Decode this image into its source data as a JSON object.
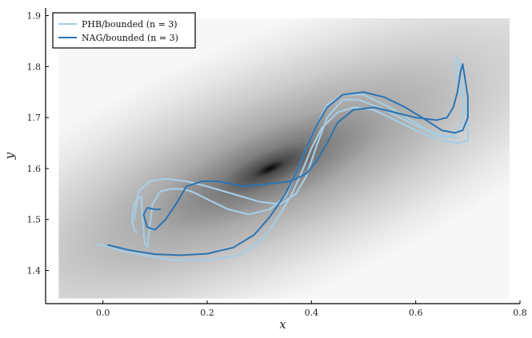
{
  "chart_data": {
    "type": "line",
    "xlabel": "x",
    "ylabel": "y",
    "xlim": [
      -0.11,
      0.8
    ],
    "ylim": [
      1.335,
      1.915
    ],
    "x_ticks": [
      0.0,
      0.2,
      0.4,
      0.6,
      0.8
    ],
    "x_tick_labels": [
      "0.0",
      "0.2",
      "0.4",
      "0.6",
      "0.8"
    ],
    "y_ticks": [
      1.4,
      1.5,
      1.6,
      1.7,
      1.8,
      1.9
    ],
    "y_tick_labels": [
      "1.4",
      "1.5",
      "1.6",
      "1.7",
      "1.8",
      "1.9"
    ],
    "grid": false,
    "legend_position": "top-left",
    "background": {
      "type": "heatmap",
      "description_colormap": "grayscale",
      "x_range": [
        -0.085,
        0.78
      ],
      "y_range": [
        1.345,
        1.895
      ],
      "minimum": [
        0.32,
        1.6
      ]
    },
    "series": [
      {
        "name": "PHB/bounded (n = 3)",
        "color": "#a6cde3",
        "paths": [
          [
            [
              -0.01,
              1.452
            ],
            [
              0.03,
              1.44
            ],
            [
              0.08,
              1.43
            ],
            [
              0.14,
              1.42
            ],
            [
              0.2,
              1.42
            ],
            [
              0.26,
              1.43
            ],
            [
              0.3,
              1.455
            ],
            [
              0.33,
              1.495
            ],
            [
              0.36,
              1.545
            ],
            [
              0.38,
              1.59
            ],
            [
              0.4,
              1.64
            ],
            [
              0.42,
              1.68
            ],
            [
              0.45,
              1.71
            ],
            [
              0.48,
              1.72
            ],
            [
              0.52,
              1.715
            ],
            [
              0.57,
              1.69
            ],
            [
              0.61,
              1.67
            ],
            [
              0.65,
              1.655
            ],
            [
              0.68,
              1.65
            ],
            [
              0.7,
              1.655
            ],
            [
              0.7,
              1.69
            ],
            [
              0.69,
              1.74
            ],
            [
              0.68,
              1.77
            ],
            [
              0.675,
              1.8
            ],
            [
              0.68,
              1.82
            ],
            [
              0.685,
              1.8
            ],
            [
              0.69,
              1.76
            ],
            [
              0.692,
              1.72
            ],
            [
              0.688,
              1.69
            ],
            [
              0.68,
              1.67
            ],
            [
              0.66,
              1.66
            ],
            [
              0.63,
              1.67
            ],
            [
              0.6,
              1.69
            ],
            [
              0.55,
              1.72
            ],
            [
              0.5,
              1.745
            ],
            [
              0.46,
              1.745
            ],
            [
              0.43,
              1.725
            ],
            [
              0.41,
              1.685
            ],
            [
              0.39,
              1.64
            ],
            [
              0.37,
              1.59
            ],
            [
              0.35,
              1.545
            ],
            [
              0.32,
              1.52
            ],
            [
              0.28,
              1.51
            ],
            [
              0.24,
              1.52
            ],
            [
              0.2,
              1.54
            ],
            [
              0.17,
              1.555
            ],
            [
              0.15,
              1.56
            ],
            [
              0.13,
              1.56
            ],
            [
              0.11,
              1.555
            ],
            [
              0.095,
              1.53
            ],
            [
              0.09,
              1.485
            ],
            [
              0.085,
              1.445
            ],
            [
              0.08,
              1.455
            ],
            [
              0.076,
              1.5
            ],
            [
              0.074,
              1.545
            ],
            [
              0.066,
              1.54
            ],
            [
              0.06,
              1.53
            ],
            [
              0.055,
              1.5
            ],
            [
              0.06,
              1.48
            ],
            [
              0.065,
              1.475
            ]
          ],
          [
            [
              0.06,
              1.5
            ],
            [
              0.068,
              1.555
            ],
            [
              0.09,
              1.575
            ],
            [
              0.12,
              1.58
            ],
            [
              0.16,
              1.575
            ],
            [
              0.2,
              1.565
            ],
            [
              0.25,
              1.55
            ],
            [
              0.3,
              1.535
            ],
            [
              0.34,
              1.53
            ],
            [
              0.37,
              1.55
            ],
            [
              0.39,
              1.585
            ],
            [
              0.41,
              1.645
            ],
            [
              0.43,
              1.7
            ],
            [
              0.46,
              1.735
            ],
            [
              0.49,
              1.735
            ],
            [
              0.53,
              1.72
            ],
            [
              0.57,
              1.7
            ],
            [
              0.61,
              1.68
            ],
            [
              0.65,
              1.665
            ],
            [
              0.68,
              1.66
            ]
          ]
        ]
      },
      {
        "name": "NAG/bounded (n = 3)",
        "color": "#2a74b3",
        "paths": [
          [
            [
              0.01,
              1.45
            ],
            [
              0.05,
              1.44
            ],
            [
              0.1,
              1.432
            ],
            [
              0.15,
              1.43
            ],
            [
              0.2,
              1.433
            ],
            [
              0.25,
              1.445
            ],
            [
              0.29,
              1.47
            ],
            [
              0.32,
              1.505
            ],
            [
              0.35,
              1.55
            ],
            [
              0.37,
              1.59
            ],
            [
              0.39,
              1.64
            ],
            [
              0.41,
              1.685
            ],
            [
              0.43,
              1.72
            ],
            [
              0.46,
              1.745
            ],
            [
              0.5,
              1.75
            ],
            [
              0.54,
              1.74
            ],
            [
              0.58,
              1.72
            ],
            [
              0.62,
              1.695
            ],
            [
              0.65,
              1.675
            ],
            [
              0.675,
              1.67
            ],
            [
              0.69,
              1.675
            ],
            [
              0.7,
              1.7
            ],
            [
              0.7,
              1.74
            ],
            [
              0.694,
              1.78
            ],
            [
              0.69,
              1.805
            ],
            [
              0.686,
              1.79
            ],
            [
              0.68,
              1.75
            ],
            [
              0.672,
              1.72
            ],
            [
              0.66,
              1.7
            ],
            [
              0.64,
              1.695
            ],
            [
              0.6,
              1.7
            ],
            [
              0.56,
              1.71
            ],
            [
              0.52,
              1.72
            ],
            [
              0.48,
              1.715
            ],
            [
              0.45,
              1.69
            ],
            [
              0.43,
              1.65
            ],
            [
              0.41,
              1.615
            ],
            [
              0.39,
              1.59
            ],
            [
              0.36,
              1.575
            ],
            [
              0.32,
              1.57
            ],
            [
              0.27,
              1.565
            ],
            [
              0.22,
              1.575
            ],
            [
              0.19,
              1.575
            ],
            [
              0.16,
              1.565
            ],
            [
              0.14,
              1.53
            ],
            [
              0.12,
              1.5
            ],
            [
              0.1,
              1.48
            ],
            [
              0.085,
              1.485
            ],
            [
              0.078,
              1.51
            ],
            [
              0.085,
              1.523
            ],
            [
              0.1,
              1.52
            ],
            [
              0.11,
              1.52
            ]
          ]
        ]
      }
    ]
  }
}
